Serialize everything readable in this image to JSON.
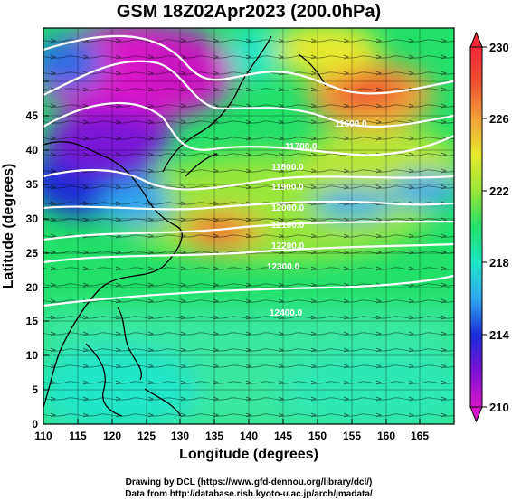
{
  "title": "GSM 18Z02Apr2023 (200.0hPa)",
  "xlabel": "Longitude (degrees)",
  "ylabel": "Latitude  (degrees)",
  "x_ticks": [
    "110",
    "115",
    "120",
    "125",
    "130",
    "135",
    "140",
    "145",
    "150",
    "155",
    "160",
    "165"
  ],
  "y_ticks": [
    "0",
    "5",
    "10",
    "15",
    "20",
    "25",
    "30",
    "35",
    "40",
    "45"
  ],
  "colorbar": {
    "ticks": [
      "230",
      "226",
      "222",
      "218",
      "214",
      "210"
    ],
    "colors": [
      "#d816c8",
      "#7a12d6",
      "#1a2cd8",
      "#2fa6f0",
      "#1ee6c8",
      "#22e06a",
      "#9ae63a",
      "#e6ea2e",
      "#f2a23a",
      "#ee5030",
      "#f02838"
    ]
  },
  "contour_labels": [
    "11600.0",
    "11700.0",
    "11800.0",
    "11900.0",
    "12000.0",
    "12100.0",
    "12200.0",
    "12300.0",
    "12400.0"
  ],
  "credits": {
    "line1": "Drawing by DCL (https://www.gfd-dennou.org/library/dcl/)",
    "line2": "Data from http://database.rish.kyoto-u.ac.jp/arch/jmadata/"
  }
}
